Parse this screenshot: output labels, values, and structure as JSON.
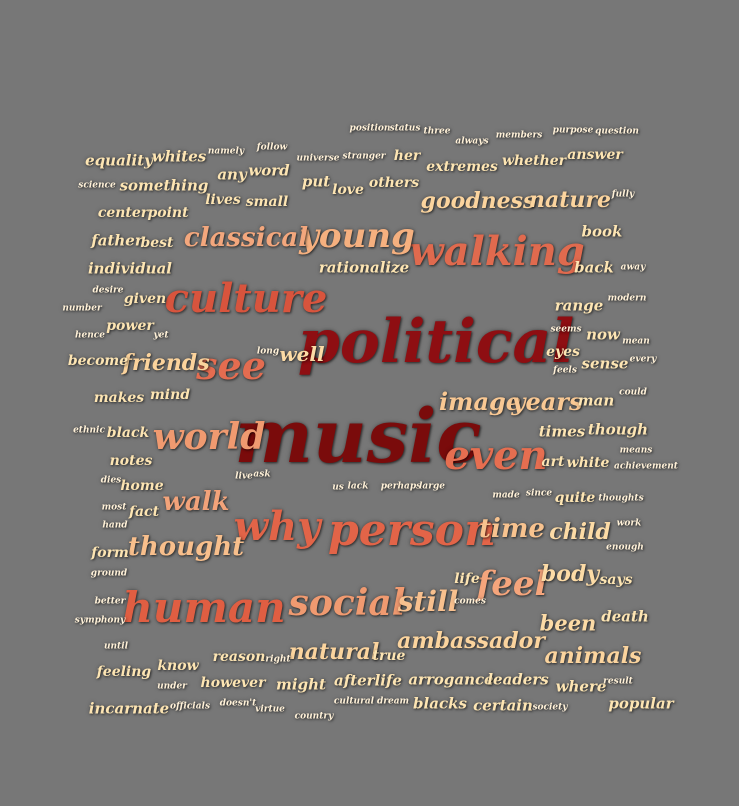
{
  "words": [
    {
      "text": "music",
      "color": "#7a0b0b"
    },
    {
      "text": "political",
      "color": "#8e0e12"
    },
    {
      "text": "culture",
      "color": "#d8543d"
    },
    {
      "text": "walking",
      "color": "#e06a4e"
    },
    {
      "text": "human",
      "color": "#e05e42"
    },
    {
      "text": "why",
      "color": "#e26448"
    },
    {
      "text": "person",
      "color": "#e26448"
    },
    {
      "text": "see",
      "color": "#e46c50"
    },
    {
      "text": "even",
      "color": "#e66e50"
    },
    {
      "text": "world",
      "color": "#f09a70"
    },
    {
      "text": "social",
      "color": "#f09a70"
    },
    {
      "text": "feel",
      "color": "#f5a57c"
    },
    {
      "text": "young",
      "color": "#f5b07f"
    },
    {
      "text": "classical",
      "color": "#f3a77d"
    },
    {
      "text": "walk",
      "color": "#f2a37a"
    },
    {
      "text": "thought",
      "color": "#f8bf8c"
    },
    {
      "text": "still",
      "color": "#f8c08e"
    },
    {
      "text": "time",
      "color": "#f8c38f"
    },
    {
      "text": "image",
      "color": "#f9c893"
    },
    {
      "text": "years",
      "color": "#f9c893"
    },
    {
      "text": "friends",
      "color": "#fbd39c"
    },
    {
      "text": "goodness",
      "color": "#fbd49e"
    },
    {
      "text": "nature",
      "color": "#fbd49e"
    },
    {
      "text": "ambassador",
      "color": "#fbd49e"
    },
    {
      "text": "natural",
      "color": "#fbd49e"
    },
    {
      "text": "animals",
      "color": "#fbd49e"
    },
    {
      "text": "well",
      "color": "#fcdba6"
    },
    {
      "text": "child",
      "color": "#fcdba6"
    },
    {
      "text": "body",
      "color": "#fcdba6"
    },
    {
      "text": "been",
      "color": "#fcdba6"
    },
    {
      "text": "rationalize",
      "color": "#fde5b3"
    },
    {
      "text": "equality",
      "color": "#fde5b3"
    },
    {
      "text": "whites",
      "color": "#fde5b3"
    },
    {
      "text": "something",
      "color": "#fde5b3"
    },
    {
      "text": "center",
      "color": "#fde5b3"
    },
    {
      "text": "point",
      "color": "#fde5b3"
    },
    {
      "text": "father",
      "color": "#fde5b3"
    },
    {
      "text": "best",
      "color": "#fde5b3"
    },
    {
      "text": "individual",
      "color": "#fde5b3"
    },
    {
      "text": "given",
      "color": "#fde5b3"
    },
    {
      "text": "power",
      "color": "#fde5b3"
    },
    {
      "text": "become",
      "color": "#fde5b3"
    },
    {
      "text": "makes",
      "color": "#fde5b3"
    },
    {
      "text": "mind",
      "color": "#fde5b3"
    },
    {
      "text": "black",
      "color": "#fde5b3"
    },
    {
      "text": "notes",
      "color": "#fde5b3"
    },
    {
      "text": "home",
      "color": "#fde5b3"
    },
    {
      "text": "fact",
      "color": "#fde5b3"
    },
    {
      "text": "form",
      "color": "#fde5b3"
    },
    {
      "text": "feeling",
      "color": "#fde5b3"
    },
    {
      "text": "know",
      "color": "#fde5b3"
    },
    {
      "text": "reason",
      "color": "#fde5b3"
    },
    {
      "text": "however",
      "color": "#fde5b3"
    },
    {
      "text": "might",
      "color": "#fde5b3"
    },
    {
      "text": "incarnate",
      "color": "#fde5b3"
    },
    {
      "text": "afterlife",
      "color": "#fde5b3"
    },
    {
      "text": "true",
      "color": "#fde5b3"
    },
    {
      "text": "arrogance",
      "color": "#fde5b3"
    },
    {
      "text": "leaders",
      "color": "#fde5b3"
    },
    {
      "text": "where",
      "color": "#fde5b3"
    },
    {
      "text": "blacks",
      "color": "#fde5b3"
    },
    {
      "text": "certain",
      "color": "#fde5b3"
    },
    {
      "text": "popular",
      "color": "#fde5b3"
    },
    {
      "text": "death",
      "color": "#fde5b3"
    },
    {
      "text": "says",
      "color": "#fde5b3"
    },
    {
      "text": "life",
      "color": "#fde5b3"
    },
    {
      "text": "times",
      "color": "#fde5b3"
    },
    {
      "text": "though",
      "color": "#fde5b3"
    },
    {
      "text": "art",
      "color": "#fde5b3"
    },
    {
      "text": "white",
      "color": "#fde5b3"
    },
    {
      "text": "quite",
      "color": "#fde5b3"
    },
    {
      "text": "man",
      "color": "#fde5b3"
    },
    {
      "text": "eyes",
      "color": "#fde5b3"
    },
    {
      "text": "sense",
      "color": "#fde5b3"
    },
    {
      "text": "now",
      "color": "#fde5b3"
    },
    {
      "text": "range",
      "color": "#fde5b3"
    },
    {
      "text": "back",
      "color": "#fde5b3"
    },
    {
      "text": "book",
      "color": "#fde5b3"
    },
    {
      "text": "answer",
      "color": "#fde5b3"
    },
    {
      "text": "whether",
      "color": "#fde5b3"
    },
    {
      "text": "extremes",
      "color": "#fde5b3"
    },
    {
      "text": "her",
      "color": "#fde5b3"
    },
    {
      "text": "others",
      "color": "#fde5b3"
    },
    {
      "text": "love",
      "color": "#fde5b3"
    },
    {
      "text": "put",
      "color": "#fde5b3"
    },
    {
      "text": "any",
      "color": "#fde5b3"
    },
    {
      "text": "word",
      "color": "#fde5b3"
    },
    {
      "text": "lives",
      "color": "#fde5b3"
    },
    {
      "text": "small",
      "color": "#fde5b3"
    },
    {
      "text": "namely",
      "color": "#fff1d8"
    },
    {
      "text": "follow",
      "color": "#fff1d8"
    },
    {
      "text": "universe",
      "color": "#fff1d8"
    },
    {
      "text": "stranger",
      "color": "#fff1d8"
    },
    {
      "text": "position",
      "color": "#fff1d8"
    },
    {
      "text": "status",
      "color": "#fff1d8"
    },
    {
      "text": "three",
      "color": "#fff1d8"
    },
    {
      "text": "always",
      "color": "#fff1d8"
    },
    {
      "text": "members",
      "color": "#fff1d8"
    },
    {
      "text": "purpose",
      "color": "#fff1d8"
    },
    {
      "text": "question",
      "color": "#fff1d8"
    },
    {
      "text": "fully",
      "color": "#fff1d8"
    },
    {
      "text": "away",
      "color": "#fff1d8"
    },
    {
      "text": "modern",
      "color": "#fff1d8"
    },
    {
      "text": "seems",
      "color": "#fff1d8"
    },
    {
      "text": "mean",
      "color": "#fff1d8"
    },
    {
      "text": "every",
      "color": "#fff1d8"
    },
    {
      "text": "feels",
      "color": "#fff1d8"
    },
    {
      "text": "could",
      "color": "#fff1d8"
    },
    {
      "text": "means",
      "color": "#fff1d8"
    },
    {
      "text": "achievement",
      "color": "#fff1d8"
    },
    {
      "text": "thoughts",
      "color": "#fff1d8"
    },
    {
      "text": "work",
      "color": "#fff1d8"
    },
    {
      "text": "enough",
      "color": "#fff1d8"
    },
    {
      "text": "result",
      "color": "#fff1d8"
    },
    {
      "text": "society",
      "color": "#fff1d8"
    },
    {
      "text": "comes",
      "color": "#fff1d8"
    },
    {
      "text": "since",
      "color": "#fff1d8"
    },
    {
      "text": "made",
      "color": "#fff1d8"
    },
    {
      "text": "perhaps",
      "color": "#fff1d8"
    },
    {
      "text": "large",
      "color": "#fff1d8"
    },
    {
      "text": "us",
      "color": "#fff1d8"
    },
    {
      "text": "lack",
      "color": "#fff1d8"
    },
    {
      "text": "live",
      "color": "#fff1d8"
    },
    {
      "text": "ask",
      "color": "#fff1d8"
    },
    {
      "text": "long",
      "color": "#fff1d8"
    },
    {
      "text": "yet",
      "color": "#fff1d8"
    },
    {
      "text": "science",
      "color": "#fff1d8"
    },
    {
      "text": "desire",
      "color": "#fff1d8"
    },
    {
      "text": "number",
      "color": "#fff1d8"
    },
    {
      "text": "hence",
      "color": "#fff1d8"
    },
    {
      "text": "ethnic",
      "color": "#fff1d8"
    },
    {
      "text": "dies",
      "color": "#fff1d8"
    },
    {
      "text": "most",
      "color": "#fff1d8"
    },
    {
      "text": "hand",
      "color": "#fff1d8"
    },
    {
      "text": "ground",
      "color": "#fff1d8"
    },
    {
      "text": "better",
      "color": "#fff1d8"
    },
    {
      "text": "symphony",
      "color": "#fff1d8"
    },
    {
      "text": "until",
      "color": "#fff1d8"
    },
    {
      "text": "under",
      "color": "#fff1d8"
    },
    {
      "text": "right",
      "color": "#fff1d8"
    },
    {
      "text": "officials",
      "color": "#fff1d8"
    },
    {
      "text": "doesn't",
      "color": "#fff1d8"
    },
    {
      "text": "virtue",
      "color": "#fff1d8"
    },
    {
      "text": "country",
      "color": "#fff1d8"
    },
    {
      "text": "cultural",
      "color": "#fff1d8"
    },
    {
      "text": "dream",
      "color": "#fff1d8"
    }
  ]
}
